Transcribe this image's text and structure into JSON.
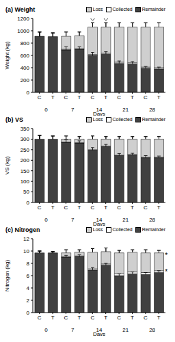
{
  "chart_data": [
    {
      "type": "bar",
      "stacked": true,
      "title": "(a) Weight",
      "xlabel": "Days",
      "ylabel": "Weight (kg)",
      "legend": "upper right",
      "categories": [
        "C",
        "T",
        "C",
        "T",
        "C",
        "T",
        "C",
        "T",
        "C",
        "T"
      ],
      "groups": [
        "0",
        "7",
        "14",
        "21",
        "28"
      ],
      "ylim": [
        0,
        1200
      ],
      "yticks": [
        0,
        200,
        400,
        600,
        800,
        1000,
        1200
      ],
      "series": [
        {
          "name": "Loss",
          "color": "#cfcfcf",
          "values": [
            0,
            0,
            210,
            210,
            445,
            425,
            570,
            580,
            650,
            660
          ],
          "error": [
            70,
            60,
            70,
            60,
            70,
            70,
            70,
            70,
            70,
            70
          ]
        },
        {
          "name": "Collected",
          "color": "#ffffff",
          "values": [
            0,
            0,
            10,
            10,
            15,
            15,
            20,
            20,
            20,
            20
          ]
        },
        {
          "name": "Remainder",
          "color": "#404040",
          "values": [
            910,
            905,
            690,
            700,
            600,
            620,
            470,
            460,
            390,
            380
          ],
          "error": [
            70,
            60,
            50,
            40,
            50,
            40,
            40,
            40,
            30,
            30
          ]
        }
      ]
    },
    {
      "type": "bar",
      "stacked": true,
      "title": "(b) VS",
      "xlabel": "Days",
      "ylabel": "VS (kg)",
      "legend": "upper right",
      "categories": [
        "C",
        "T",
        "C",
        "T",
        "C",
        "T",
        "C",
        "T",
        "C",
        "T"
      ],
      "groups": [
        "0",
        "7",
        "14",
        "21",
        "28"
      ],
      "ylim": [
        0,
        350
      ],
      "yticks": [
        0,
        50,
        100,
        150,
        200,
        250,
        300,
        350
      ],
      "series": [
        {
          "name": "Loss",
          "color": "#cfcfcf",
          "values": [
            0,
            0,
            14,
            17,
            50,
            33,
            76,
            73,
            86,
            86
          ],
          "error": [
            18,
            15,
            15,
            12,
            15,
            12,
            12,
            12,
            12,
            12
          ]
        },
        {
          "name": "Collected",
          "color": "#ffffff",
          "values": [
            0,
            0,
            1,
            1,
            2,
            2,
            2,
            2,
            2,
            2
          ]
        },
        {
          "name": "Remainder",
          "color": "#404040",
          "values": [
            300,
            300,
            285,
            282,
            248,
            265,
            222,
            225,
            212,
            212
          ],
          "error": [
            18,
            15,
            12,
            10,
            12,
            10,
            10,
            8,
            10,
            8
          ]
        }
      ]
    },
    {
      "type": "bar",
      "stacked": true,
      "title": "(c) Nitrogen",
      "xlabel": "Days",
      "ylabel": "Nitrogen (kg)",
      "legend": "upper right",
      "categories": [
        "C",
        "T",
        "C",
        "T",
        "C",
        "T",
        "C",
        "T",
        "C",
        "T"
      ],
      "groups": [
        "0",
        "7",
        "14",
        "21",
        "28"
      ],
      "ylim": [
        0,
        12
      ],
      "yticks": [
        0,
        2,
        4,
        6,
        8,
        10,
        12
      ],
      "annotations": [
        {
          "text": "*",
          "x": 9,
          "y": 9.3
        },
        {
          "text": "*",
          "x": 9,
          "y": 6.6
        }
      ],
      "series": [
        {
          "name": "Loss",
          "color": "#cfcfcf",
          "values": [
            0,
            0,
            0.6,
            0.6,
            2.7,
            2.0,
            3.4,
            3.2,
            3.2,
            2.9
          ],
          "error": [
            0.3,
            0.2,
            0.5,
            0.4,
            0.6,
            0.6,
            0.4,
            0.4,
            0.5,
            0.4
          ]
        },
        {
          "name": "Collected",
          "color": "#ffffff",
          "values": [
            0,
            0,
            0.1,
            0.1,
            0.2,
            0.2,
            0.3,
            0.3,
            0.3,
            0.3
          ]
        },
        {
          "name": "Remainder",
          "color": "#404040",
          "values": [
            9.7,
            9.7,
            9.0,
            9.1,
            6.9,
            7.7,
            6.0,
            6.3,
            6.2,
            6.5
          ],
          "error": [
            0.3,
            0.2,
            0.3,
            0.3,
            0.4,
            0.3,
            0.3,
            0.3,
            0.3,
            0.3
          ]
        }
      ]
    }
  ]
}
